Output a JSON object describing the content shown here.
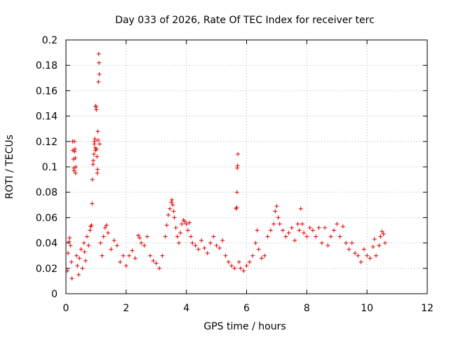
{
  "chart_data": {
    "type": "scatter",
    "title": "Day 033 of 2026, Rate Of TEC Index for receiver terc",
    "xlabel": "GPS time / hours",
    "ylabel": "ROTI / TECUs",
    "xlim": [
      0,
      12
    ],
    "ylim": [
      0,
      0.2
    ],
    "x_ticks": [
      0,
      2,
      4,
      6,
      8,
      10,
      12
    ],
    "x_tick_labels": [
      "0",
      "2",
      "4",
      "6",
      "8",
      "10",
      "12"
    ],
    "y_ticks": [
      0,
      0.02,
      0.04,
      0.06,
      0.08,
      0.1,
      0.12,
      0.14,
      0.16,
      0.18,
      0.2
    ],
    "y_tick_labels": [
      "0",
      "0.02",
      "0.04",
      "0.06",
      "0.08",
      "0.1",
      "0.12",
      "0.14",
      "0.16",
      "0.18",
      "0.2"
    ],
    "grid": true,
    "marker": "+",
    "marker_color": "#e00000",
    "series": [
      {
        "name": "ROTI",
        "points": [
          [
            0.05,
            0.018
          ],
          [
            0.07,
            0.032
          ],
          [
            0.1,
            0.041
          ],
          [
            0.12,
            0.044
          ],
          [
            0.15,
            0.038
          ],
          [
            0.18,
            0.025
          ],
          [
            0.2,
            0.012
          ],
          [
            0.22,
            0.12
          ],
          [
            0.23,
            0.113
          ],
          [
            0.25,
            0.106
          ],
          [
            0.26,
            0.099
          ],
          [
            0.27,
            0.097
          ],
          [
            0.28,
            0.12
          ],
          [
            0.29,
            0.112
          ],
          [
            0.31,
            0.107
          ],
          [
            0.3,
            0.114
          ],
          [
            0.33,
            0.1
          ],
          [
            0.32,
            0.095
          ],
          [
            0.35,
            0.03
          ],
          [
            0.38,
            0.022
          ],
          [
            0.42,
            0.015
          ],
          [
            0.45,
            0.028
          ],
          [
            0.5,
            0.035
          ],
          [
            0.55,
            0.02
          ],
          [
            0.6,
            0.04
          ],
          [
            0.62,
            0.033
          ],
          [
            0.65,
            0.026
          ],
          [
            0.7,
            0.045
          ],
          [
            0.75,
            0.038
          ],
          [
            0.8,
            0.05
          ],
          [
            0.82,
            0.053
          ],
          [
            0.85,
            0.054
          ],
          [
            0.87,
            0.071
          ],
          [
            0.88,
            0.09
          ],
          [
            0.9,
            0.102
          ],
          [
            0.91,
            0.105
          ],
          [
            0.93,
            0.11
          ],
          [
            0.94,
            0.118
          ],
          [
            0.95,
            0.12
          ],
          [
            0.96,
            0.122
          ],
          [
            0.97,
            0.115
          ],
          [
            0.98,
            0.113
          ],
          [
            0.99,
            0.148
          ],
          [
            1.0,
            0.147
          ],
          [
            1.01,
            0.145
          ],
          [
            1.02,
            0.114
          ],
          [
            1.03,
            0.108
          ],
          [
            1.04,
            0.095
          ],
          [
            1.05,
            0.098
          ],
          [
            1.06,
            0.128
          ],
          [
            1.07,
            0.121
          ],
          [
            1.08,
            0.167
          ],
          [
            1.09,
            0.189
          ],
          [
            1.1,
            0.182
          ],
          [
            1.11,
            0.173
          ],
          [
            1.12,
            0.118
          ],
          [
            1.15,
            0.04
          ],
          [
            1.2,
            0.03
          ],
          [
            1.25,
            0.045
          ],
          [
            1.3,
            0.052
          ],
          [
            1.35,
            0.054
          ],
          [
            1.4,
            0.048
          ],
          [
            1.5,
            0.035
          ],
          [
            1.6,
            0.042
          ],
          [
            1.7,
            0.038
          ],
          [
            1.8,
            0.025
          ],
          [
            1.9,
            0.03
          ],
          [
            2.0,
            0.022
          ],
          [
            2.1,
            0.03
          ],
          [
            2.2,
            0.034
          ],
          [
            2.3,
            0.028
          ],
          [
            2.4,
            0.046
          ],
          [
            2.45,
            0.044
          ],
          [
            2.5,
            0.04
          ],
          [
            2.6,
            0.038
          ],
          [
            2.7,
            0.045
          ],
          [
            2.8,
            0.03
          ],
          [
            2.9,
            0.026
          ],
          [
            3.0,
            0.024
          ],
          [
            3.1,
            0.02
          ],
          [
            3.2,
            0.03
          ],
          [
            3.3,
            0.045
          ],
          [
            3.35,
            0.054
          ],
          [
            3.4,
            0.062
          ],
          [
            3.45,
            0.067
          ],
          [
            3.5,
            0.072
          ],
          [
            3.52,
            0.074
          ],
          [
            3.55,
            0.07
          ],
          [
            3.58,
            0.065
          ],
          [
            3.6,
            0.06
          ],
          [
            3.65,
            0.052
          ],
          [
            3.7,
            0.045
          ],
          [
            3.75,
            0.04
          ],
          [
            3.8,
            0.048
          ],
          [
            3.85,
            0.055
          ],
          [
            3.9,
            0.058
          ],
          [
            3.95,
            0.057
          ],
          [
            4.0,
            0.055
          ],
          [
            4.05,
            0.05
          ],
          [
            4.1,
            0.056
          ],
          [
            4.15,
            0.045
          ],
          [
            4.2,
            0.04
          ],
          [
            4.3,
            0.038
          ],
          [
            4.4,
            0.035
          ],
          [
            4.5,
            0.042
          ],
          [
            4.6,
            0.036
          ],
          [
            4.7,
            0.032
          ],
          [
            4.8,
            0.04
          ],
          [
            4.9,
            0.045
          ],
          [
            5.0,
            0.038
          ],
          [
            5.1,
            0.036
          ],
          [
            5.2,
            0.042
          ],
          [
            5.3,
            0.03
          ],
          [
            5.4,
            0.025
          ],
          [
            5.5,
            0.022
          ],
          [
            5.6,
            0.02
          ],
          [
            5.65,
            0.067
          ],
          [
            5.67,
            0.068
          ],
          [
            5.68,
            0.08
          ],
          [
            5.69,
            0.099
          ],
          [
            5.7,
            0.101
          ],
          [
            5.71,
            0.11
          ],
          [
            5.75,
            0.025
          ],
          [
            5.8,
            0.02
          ],
          [
            5.9,
            0.018
          ],
          [
            6.0,
            0.022
          ],
          [
            6.1,
            0.025
          ],
          [
            6.2,
            0.03
          ],
          [
            6.3,
            0.04
          ],
          [
            6.35,
            0.05
          ],
          [
            6.4,
            0.035
          ],
          [
            6.5,
            0.028
          ],
          [
            6.6,
            0.03
          ],
          [
            6.7,
            0.045
          ],
          [
            6.8,
            0.05
          ],
          [
            6.9,
            0.055
          ],
          [
            6.95,
            0.065
          ],
          [
            7.0,
            0.069
          ],
          [
            7.05,
            0.06
          ],
          [
            7.1,
            0.055
          ],
          [
            7.2,
            0.05
          ],
          [
            7.3,
            0.045
          ],
          [
            7.4,
            0.048
          ],
          [
            7.5,
            0.052
          ],
          [
            7.6,
            0.042
          ],
          [
            7.7,
            0.055
          ],
          [
            7.75,
            0.05
          ],
          [
            7.8,
            0.067
          ],
          [
            7.85,
            0.055
          ],
          [
            7.9,
            0.048
          ],
          [
            8.0,
            0.045
          ],
          [
            8.1,
            0.052
          ],
          [
            8.2,
            0.05
          ],
          [
            8.3,
            0.045
          ],
          [
            8.4,
            0.052
          ],
          [
            8.5,
            0.04
          ],
          [
            8.6,
            0.052
          ],
          [
            8.7,
            0.038
          ],
          [
            8.8,
            0.045
          ],
          [
            8.9,
            0.05
          ],
          [
            9.0,
            0.055
          ],
          [
            9.1,
            0.045
          ],
          [
            9.2,
            0.053
          ],
          [
            9.3,
            0.04
          ],
          [
            9.4,
            0.035
          ],
          [
            9.5,
            0.04
          ],
          [
            9.6,
            0.032
          ],
          [
            9.7,
            0.03
          ],
          [
            9.8,
            0.025
          ],
          [
            9.9,
            0.035
          ],
          [
            10.0,
            0.03
          ],
          [
            10.1,
            0.028
          ],
          [
            10.2,
            0.037
          ],
          [
            10.25,
            0.043
          ],
          [
            10.3,
            0.03
          ],
          [
            10.4,
            0.038
          ],
          [
            10.45,
            0.045
          ],
          [
            10.5,
            0.049
          ],
          [
            10.55,
            0.047
          ],
          [
            10.6,
            0.04
          ]
        ]
      }
    ]
  }
}
